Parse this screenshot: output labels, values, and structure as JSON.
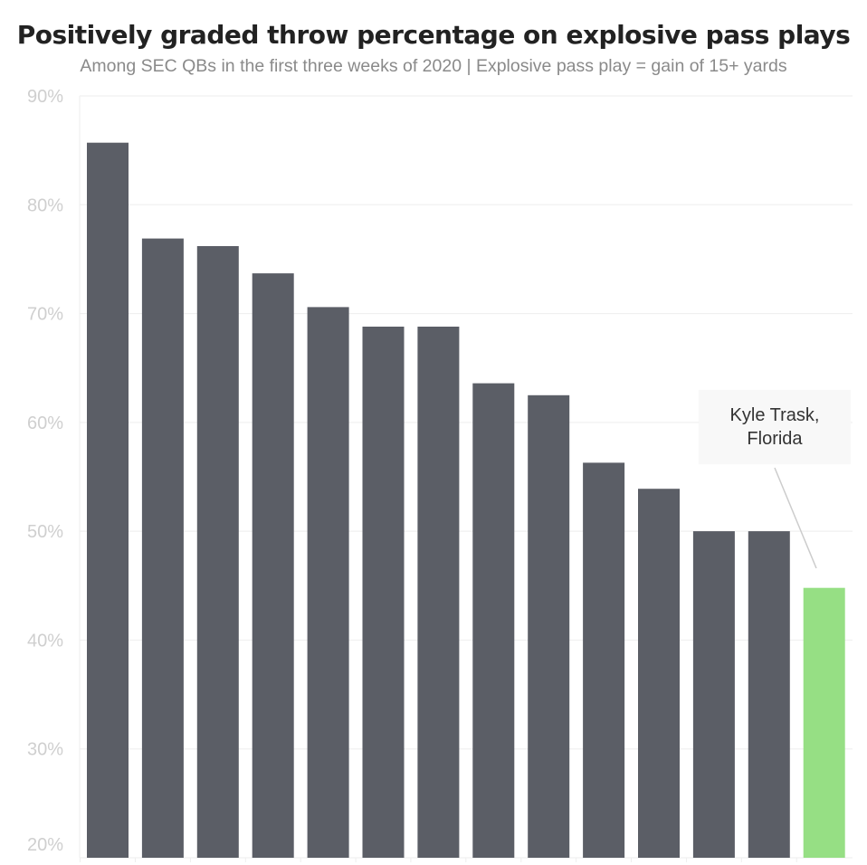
{
  "chart_data": {
    "type": "bar",
    "title": "Positively graded throw percentage on explosive pass plays",
    "subtitle": "Among SEC QBs in the first three weeks of 2020 | Explosive pass play = gain of 15+ yards",
    "values": [
      85.7,
      76.9,
      76.2,
      73.7,
      70.6,
      68.8,
      68.8,
      63.6,
      62.5,
      56.3,
      53.9,
      50.0,
      50.0,
      44.8
    ],
    "ylim": [
      20,
      90
    ],
    "yticks": [
      20,
      30,
      40,
      50,
      60,
      70,
      80,
      90
    ],
    "ytick_labels": [
      "20%",
      "30%",
      "40%",
      "50%",
      "60%",
      "70%",
      "80%",
      "90%"
    ],
    "grid": true,
    "highlight_index": 13,
    "annotation": "Kyle Trask, Florida",
    "colors": {
      "bar": "#5b5e66",
      "highlight": "#96df84",
      "grid": "#eeeeee"
    }
  }
}
